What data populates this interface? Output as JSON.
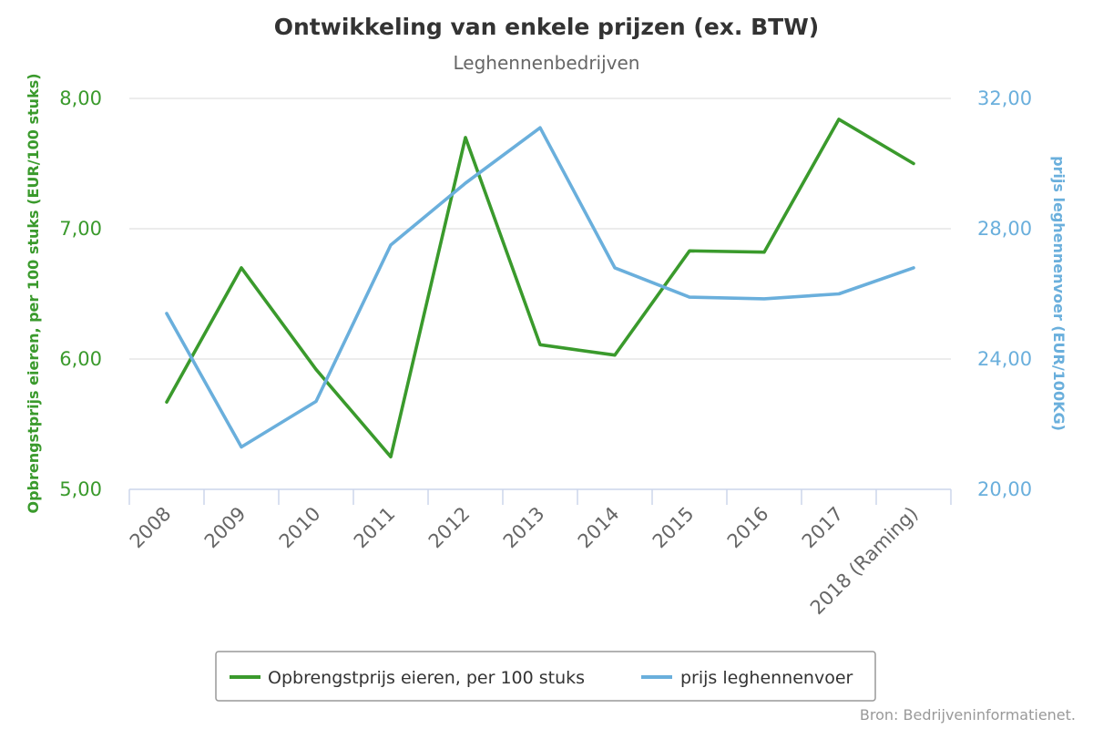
{
  "chart_data": {
    "type": "line",
    "title": "Ontwikkeling van enkele prijzen (ex. BTW)",
    "subtitle": "Leghennenbedrijven",
    "categories": [
      "2008",
      "2009",
      "2010",
      "2011",
      "2012",
      "2013",
      "2014",
      "2015",
      "2016",
      "2017",
      "2018 (Raming)"
    ],
    "y_left": {
      "label": "Opbrengstprijs eieren, per 100 stuks (EUR/100 stuks)",
      "ticks": [
        "5,00",
        "6,00",
        "7,00",
        "8,00"
      ],
      "range": [
        5,
        8
      ],
      "color": "#3a9a2c"
    },
    "y_right": {
      "label": "prijs leghennenvoer (EUR/100KG)",
      "ticks": [
        "20,00",
        "24,00",
        "28,00",
        "32,00"
      ],
      "range": [
        20,
        32
      ],
      "color": "#6aafdc"
    },
    "series": [
      {
        "name": "Opbrengstprijs eieren, per 100 stuks",
        "axis": "left",
        "color": "#3a9a2c",
        "values": [
          5.67,
          6.7,
          5.92,
          5.25,
          7.7,
          6.11,
          6.03,
          6.83,
          6.82,
          7.84,
          7.5
        ]
      },
      {
        "name": "prijs leghennenvoer",
        "axis": "right",
        "color": "#6aafdc",
        "values": [
          25.4,
          21.3,
          22.7,
          27.5,
          29.4,
          31.1,
          26.8,
          25.9,
          25.85,
          26.0,
          26.8
        ]
      }
    ],
    "grid": true,
    "legend_position": "bottom-center"
  },
  "credits": "Bron: Bedrijveninformatienet."
}
